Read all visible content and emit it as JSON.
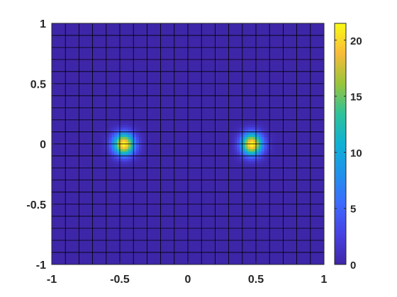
{
  "chart_data": {
    "type": "heatmap",
    "title": "",
    "xlabel": "",
    "ylabel": "",
    "xlim": [
      -1,
      1
    ],
    "ylim": [
      -1,
      1
    ],
    "clim": [
      0,
      21.5
    ],
    "colormap": "parula",
    "grid_cells": [
      20,
      20
    ],
    "xticks": [
      {
        "value": -1,
        "label": "-1"
      },
      {
        "value": -0.5,
        "label": "-0.5"
      },
      {
        "value": 0,
        "label": "0"
      },
      {
        "value": 0.5,
        "label": "0.5"
      },
      {
        "value": 1,
        "label": "1"
      }
    ],
    "yticks": [
      {
        "value": -1,
        "label": "-1"
      },
      {
        "value": -0.5,
        "label": "-0.5"
      },
      {
        "value": 0,
        "label": "0"
      },
      {
        "value": 0.5,
        "label": "0.5"
      },
      {
        "value": 1,
        "label": "1"
      }
    ],
    "colorbar_ticks": [
      {
        "value": 0,
        "label": "0"
      },
      {
        "value": 5,
        "label": "5"
      },
      {
        "value": 10,
        "label": "10"
      },
      {
        "value": 15,
        "label": "15"
      },
      {
        "value": 20,
        "label": "20"
      }
    ],
    "peaks": [
      {
        "x": -0.47,
        "y": 0.0,
        "value": 21.5
      },
      {
        "x": 0.47,
        "y": 0.0,
        "value": 21.5
      }
    ]
  }
}
